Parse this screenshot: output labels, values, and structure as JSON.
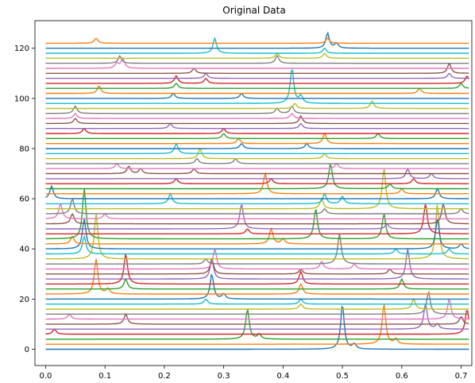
{
  "chart_data": {
    "type": "line",
    "title": "Original Data",
    "xlabel": "",
    "ylabel": "",
    "xlim": [
      -0.018,
      0.718
    ],
    "ylim": [
      -6.5,
      131
    ],
    "xticks": [
      0.0,
      0.1,
      0.2,
      0.3,
      0.4,
      0.5,
      0.6,
      0.7
    ],
    "yticks": [
      0,
      20,
      40,
      60,
      80,
      100,
      120
    ],
    "x_range": [
      0.0,
      0.713
    ],
    "offset_step": 2,
    "grid": false,
    "legend": "none",
    "palette": [
      "#1f77b4",
      "#ff7f0e",
      "#2ca02c",
      "#d62728",
      "#9467bd",
      "#8c564b",
      "#e377c2",
      "#7f7f7f",
      "#bcbd22",
      "#17becf"
    ],
    "series": [
      {
        "offset": 0,
        "peaks": [
          [
            0.5,
            18
          ],
          [
            0.52,
            2
          ]
        ]
      },
      {
        "offset": 2,
        "peaks": [
          [
            0.57,
            16
          ],
          [
            0.59,
            2
          ]
        ]
      },
      {
        "offset": 4,
        "peaks": [
          [
            0.34,
            12
          ],
          [
            0.36,
            2
          ]
        ]
      },
      {
        "offset": 6,
        "peaks": [
          [
            0.015,
            2
          ],
          [
            0.71,
            10
          ]
        ]
      },
      {
        "offset": 8,
        "peaks": [
          [
            0.64,
            10
          ],
          [
            0.66,
            2
          ]
        ]
      },
      {
        "offset": 10,
        "peaks": [
          [
            0.135,
            4
          ],
          [
            0.7,
            3
          ]
        ]
      },
      {
        "offset": 12,
        "peaks": [
          [
            0.04,
            2
          ],
          [
            0.68,
            8
          ]
        ]
      },
      {
        "offset": 14,
        "peaks": [
          [
            0.645,
            9
          ]
        ]
      },
      {
        "offset": 16,
        "peaks": [
          [
            0.43,
            2
          ],
          [
            0.62,
            4
          ]
        ]
      },
      {
        "offset": 18,
        "peaks": [
          [
            0.27,
            2
          ],
          [
            0.43,
            2
          ]
        ]
      },
      {
        "offset": 20,
        "peaks": [
          [
            0.28,
            10
          ],
          [
            0.3,
            2
          ]
        ]
      },
      {
        "offset": 22,
        "peaks": [
          [
            0.085,
            14
          ],
          [
            0.105,
            2
          ],
          [
            0.43,
            4
          ]
        ]
      },
      {
        "offset": 24,
        "peaks": [
          [
            0.135,
            4
          ],
          [
            0.6,
            4
          ]
        ]
      },
      {
        "offset": 26,
        "peaks": [
          [
            0.135,
            12
          ],
          [
            0.43,
            5
          ]
        ]
      },
      {
        "offset": 28,
        "peaks": [
          [
            0.28,
            8
          ],
          [
            0.61,
            12
          ]
        ]
      },
      {
        "offset": 30,
        "peaks": [
          [
            0.28,
            6
          ],
          [
            0.43,
            2
          ],
          [
            0.58,
            2
          ]
        ]
      },
      {
        "offset": 32,
        "peaks": [
          [
            0.285,
            8
          ],
          [
            0.465,
            3
          ],
          [
            0.52,
            2
          ]
        ]
      },
      {
        "offset": 34,
        "peaks": [
          [
            0.27,
            2
          ],
          [
            0.495,
            12
          ]
        ]
      },
      {
        "offset": 36,
        "peaks": [
          [
            0.085,
            18
          ],
          [
            0.66,
            22
          ]
        ]
      },
      {
        "offset": 38,
        "peaks": [
          [
            0.065,
            7
          ],
          [
            0.59,
            2
          ],
          [
            0.68,
            2
          ]
        ]
      },
      {
        "offset": 40,
        "peaks": [
          [
            0.065,
            12
          ],
          [
            0.66,
            12
          ],
          [
            0.7,
            2
          ]
        ]
      },
      {
        "offset": 42,
        "peaks": [
          [
            0.045,
            3
          ],
          [
            0.38,
            6
          ],
          [
            0.4,
            2
          ]
        ]
      },
      {
        "offset": 44,
        "peaks": [
          [
            0.065,
            20
          ],
          [
            0.455,
            12
          ],
          [
            0.57,
            10
          ]
        ]
      },
      {
        "offset": 46,
        "peaks": [
          [
            0.34,
            2
          ],
          [
            0.64,
            12
          ]
        ]
      },
      {
        "offset": 48,
        "peaks": [
          [
            0.33,
            10
          ],
          [
            0.575,
            2
          ]
        ]
      },
      {
        "offset": 50,
        "peaks": [
          [
            0.045,
            4
          ],
          [
            0.67,
            8
          ]
        ]
      },
      {
        "offset": 52,
        "peaks": [
          [
            0.025,
            6
          ],
          [
            0.1,
            2
          ]
        ]
      },
      {
        "offset": 54,
        "peaks": [
          [
            0.045,
            6
          ],
          [
            0.47,
            2
          ],
          [
            0.7,
            2
          ]
        ]
      },
      {
        "offset": 56,
        "peaks": [
          [
            0.465,
            4
          ],
          [
            0.57,
            16
          ]
        ]
      },
      {
        "offset": 58,
        "peaks": [
          [
            0.21,
            4
          ],
          [
            0.47,
            4
          ],
          [
            0.5,
            3
          ]
        ]
      },
      {
        "offset": 60,
        "peaks": [
          [
            0.01,
            5
          ],
          [
            0.66,
            4
          ]
        ]
      },
      {
        "offset": 62,
        "peaks": [
          [
            0.37,
            8
          ],
          [
            0.6,
            2
          ]
        ]
      },
      {
        "offset": 64,
        "peaks": [
          [
            0.48,
            10
          ],
          [
            0.58,
            2
          ]
        ]
      },
      {
        "offset": 66,
        "peaks": [
          [
            0.22,
            2
          ],
          [
            0.38,
            2
          ],
          [
            0.62,
            2
          ]
        ]
      },
      {
        "offset": 68,
        "peaks": [
          [
            0.61,
            4
          ],
          [
            0.65,
            2
          ]
        ]
      },
      {
        "offset": 70,
        "peaks": [
          [
            0.14,
            3
          ],
          [
            0.16,
            2
          ],
          [
            0.25,
            2
          ]
        ]
      },
      {
        "offset": 72,
        "peaks": [
          [
            0.12,
            2
          ],
          [
            0.49,
            2
          ]
        ]
      },
      {
        "offset": 74,
        "peaks": [
          [
            0.255,
            2
          ],
          [
            0.32,
            2
          ]
        ]
      },
      {
        "offset": 76,
        "peaks": [
          [
            0.26,
            4
          ],
          [
            0.47,
            2
          ]
        ]
      },
      {
        "offset": 78,
        "peaks": [
          [
            0.22,
            4
          ]
        ]
      },
      {
        "offset": 80,
        "peaks": [
          [
            0.33,
            2
          ],
          [
            0.44,
            2
          ]
        ]
      },
      {
        "offset": 82,
        "peaks": [
          [
            0.325,
            2
          ],
          [
            0.47,
            4
          ]
        ]
      },
      {
        "offset": 84,
        "peaks": [
          [
            0.3,
            2
          ],
          [
            0.56,
            2
          ]
        ]
      },
      {
        "offset": 86,
        "peaks": [
          [
            0.065,
            2
          ],
          [
            0.3,
            2
          ]
        ]
      },
      {
        "offset": 88,
        "peaks": [
          [
            0.21,
            2
          ],
          [
            0.43,
            2
          ]
        ]
      },
      {
        "offset": 90,
        "peaks": [
          [
            0.05,
            2
          ],
          [
            0.43,
            3
          ]
        ]
      },
      {
        "offset": 92,
        "peaks": [
          [
            0.05,
            2
          ],
          [
            0.415,
            2
          ]
        ]
      },
      {
        "offset": 94,
        "peaks": [
          [
            0.05,
            3
          ],
          [
            0.39,
            2
          ],
          [
            0.415,
            3
          ]
        ]
      },
      {
        "offset": 96,
        "peaks": [
          [
            0.42,
            2
          ],
          [
            0.55,
            3
          ]
        ]
      },
      {
        "offset": 98,
        "peaks": [
          [
            0.415,
            14
          ],
          [
            0.43,
            3
          ]
        ]
      },
      {
        "offset": 100,
        "peaks": [
          [
            0.215,
            2
          ],
          [
            0.33,
            2
          ]
        ]
      },
      {
        "offset": 102,
        "peaks": [
          [
            0.09,
            3
          ],
          [
            0.63,
            2
          ]
        ]
      },
      {
        "offset": 104,
        "peaks": [
          [
            0.22,
            2
          ],
          [
            0.7,
            2
          ]
        ]
      },
      {
        "offset": 106,
        "peaks": [
          [
            0.22,
            3
          ],
          [
            0.27,
            2
          ],
          [
            0.71,
            3
          ]
        ]
      },
      {
        "offset": 108,
        "peaks": [
          [
            0.27,
            2
          ],
          [
            0.68,
            2
          ]
        ]
      },
      {
        "offset": 110,
        "peaks": [
          [
            0.25,
            2
          ],
          [
            0.68,
            4
          ]
        ]
      },
      {
        "offset": 112,
        "peaks": [
          [
            0.12,
            2
          ],
          [
            0.13,
            4
          ]
        ]
      },
      {
        "offset": 114,
        "peaks": [
          [
            0.125,
            3
          ],
          [
            0.39,
            3
          ]
        ]
      },
      {
        "offset": 116,
        "peaks": [
          [
            0.39,
            2
          ],
          [
            0.47,
            2
          ]
        ]
      },
      {
        "offset": 118,
        "peaks": [
          [
            0.285,
            6
          ],
          [
            0.47,
            2
          ]
        ]
      },
      {
        "offset": 120,
        "peaks": [
          [
            0.475,
            6
          ],
          [
            0.49,
            2
          ]
        ]
      },
      {
        "offset": 122,
        "peaks": [
          [
            0.085,
            2
          ],
          [
            0.475,
            2
          ]
        ]
      }
    ]
  }
}
